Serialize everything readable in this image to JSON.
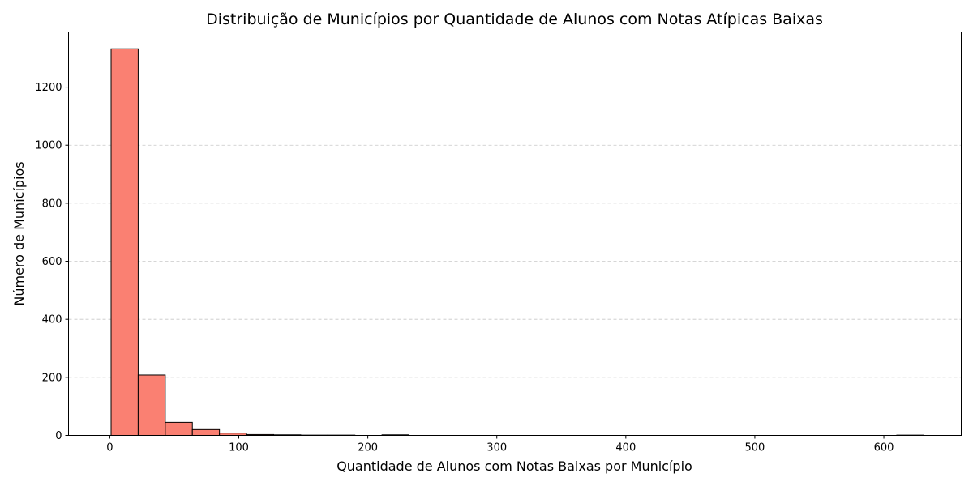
{
  "chart_data": {
    "type": "bar",
    "title": "Distribuição de Municípios por Quantidade de Alunos com Notas Atípicas Baixas",
    "xlabel": "Quantidade de Alunos com Notas Baixas por Município",
    "ylabel": "Número de Municípios",
    "xlim": [
      -32,
      660
    ],
    "ylim": [
      0,
      1390
    ],
    "xticks": [
      0,
      100,
      200,
      300,
      400,
      500,
      600
    ],
    "yticks": [
      0,
      200,
      400,
      600,
      800,
      1000,
      1200
    ],
    "grid": "y-dashed",
    "bar_color": "#fa8072",
    "bar_edge_color": "#000000",
    "bins": [
      {
        "x0": 1,
        "x1": 22,
        "count": 1332
      },
      {
        "x0": 22,
        "x1": 43,
        "count": 208
      },
      {
        "x0": 43,
        "x1": 64,
        "count": 45
      },
      {
        "x0": 64,
        "x1": 85,
        "count": 20
      },
      {
        "x0": 85,
        "x1": 106,
        "count": 8
      },
      {
        "x0": 106,
        "x1": 127,
        "count": 3
      },
      {
        "x0": 127,
        "x1": 148,
        "count": 2
      },
      {
        "x0": 148,
        "x1": 169,
        "count": 1
      },
      {
        "x0": 169,
        "x1": 190,
        "count": 1
      },
      {
        "x0": 190,
        "x1": 211,
        "count": 0
      },
      {
        "x0": 211,
        "x1": 232,
        "count": 2
      },
      {
        "x0": 232,
        "x1": 253,
        "count": 0
      },
      {
        "x0": 253,
        "x1": 274,
        "count": 0
      },
      {
        "x0": 274,
        "x1": 295,
        "count": 0
      },
      {
        "x0": 295,
        "x1": 316,
        "count": 0
      },
      {
        "x0": 316,
        "x1": 337,
        "count": 0
      },
      {
        "x0": 337,
        "x1": 358,
        "count": 0
      },
      {
        "x0": 358,
        "x1": 379,
        "count": 0
      },
      {
        "x0": 379,
        "x1": 400,
        "count": 0
      },
      {
        "x0": 400,
        "x1": 421,
        "count": 0
      },
      {
        "x0": 421,
        "x1": 442,
        "count": 0
      },
      {
        "x0": 442,
        "x1": 463,
        "count": 0
      },
      {
        "x0": 463,
        "x1": 484,
        "count": 0
      },
      {
        "x0": 484,
        "x1": 505,
        "count": 0
      },
      {
        "x0": 505,
        "x1": 526,
        "count": 0
      },
      {
        "x0": 526,
        "x1": 547,
        "count": 0
      },
      {
        "x0": 547,
        "x1": 568,
        "count": 0
      },
      {
        "x0": 568,
        "x1": 589,
        "count": 0
      },
      {
        "x0": 589,
        "x1": 610,
        "count": 0
      },
      {
        "x0": 610,
        "x1": 631,
        "count": 1
      }
    ]
  }
}
